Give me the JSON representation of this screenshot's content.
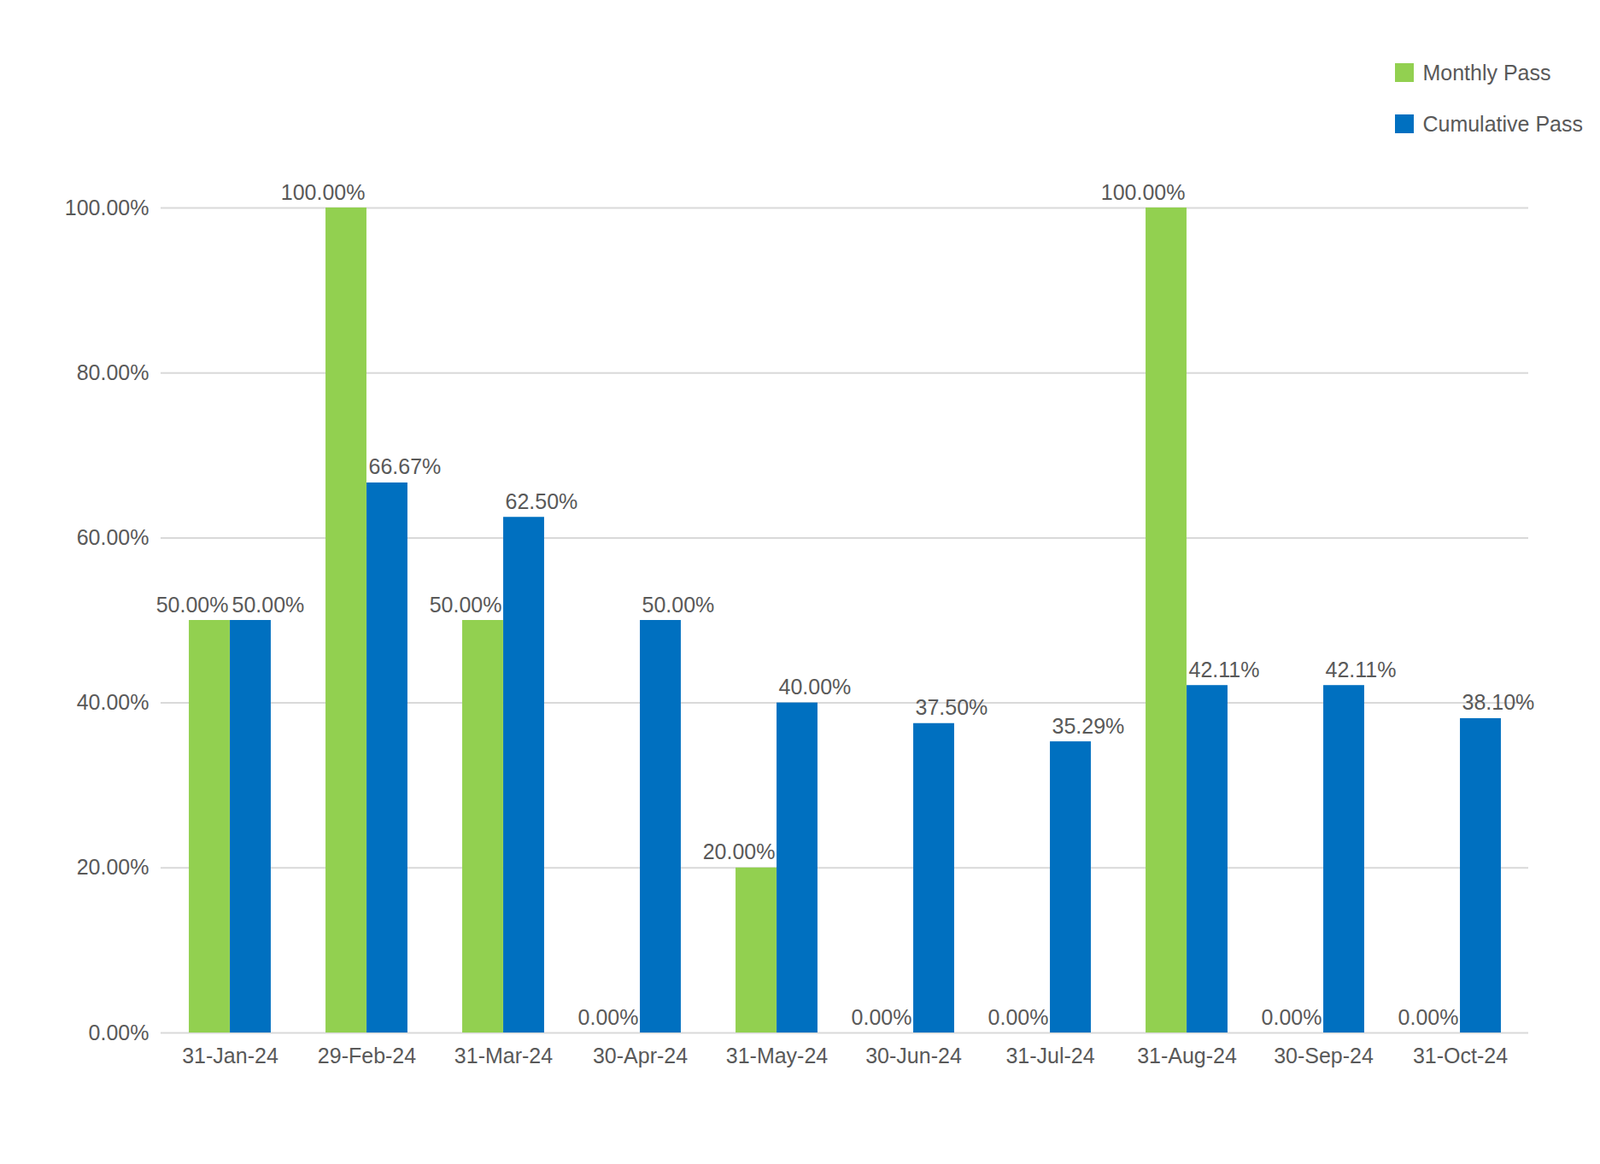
{
  "chart_data": {
    "type": "bar",
    "categories": [
      "31-Jan-24",
      "29-Feb-24",
      "31-Mar-24",
      "30-Apr-24",
      "31-May-24",
      "30-Jun-24",
      "31-Jul-24",
      "31-Aug-24",
      "30-Sep-24",
      "31-Oct-24"
    ],
    "series": [
      {
        "name": "Monthly Pass",
        "color": "#92d050",
        "values": [
          50,
          100,
          50,
          0,
          20,
          0,
          0,
          100,
          0,
          0
        ],
        "value_labels": [
          "50.00%",
          "100.00%",
          "50.00%",
          "0.00%",
          "20.00%",
          "0.00%",
          "0.00%",
          "100.00%",
          "0.00%",
          "0.00%"
        ]
      },
      {
        "name": "Cumulative Pass",
        "color": "#0070c0",
        "values": [
          50,
          66.67,
          62.5,
          50,
          40,
          37.5,
          35.29,
          42.11,
          42.11,
          38.1
        ],
        "value_labels": [
          "50.00%",
          "66.67%",
          "62.50%",
          "50.00%",
          "40.00%",
          "37.50%",
          "35.29%",
          "42.11%",
          "42.11%",
          "38.10%"
        ]
      }
    ],
    "ylim": [
      0,
      100
    ],
    "yticks": [
      {
        "value": 0,
        "label": "0.00%"
      },
      {
        "value": 20,
        "label": "20.00%"
      },
      {
        "value": 40,
        "label": "40.00%"
      },
      {
        "value": 60,
        "label": "60.00%"
      },
      {
        "value": 80,
        "label": "80.00%"
      },
      {
        "value": 100,
        "label": "100.00%"
      }
    ],
    "grid": true,
    "data_labels": true,
    "legend": "top-right"
  }
}
